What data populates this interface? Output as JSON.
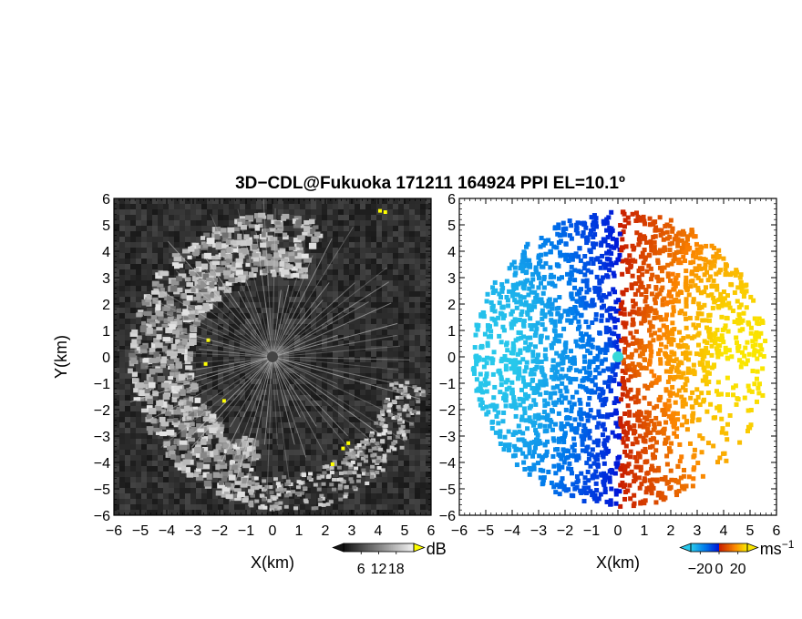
{
  "chart_data": [
    {
      "type": "heatmap",
      "panel": "reflectivity",
      "title": "3D−CDL@Fukuoka 171211 164924 PPI EL=10.1º",
      "xlabel": "X(km)",
      "ylabel": "Y(km)",
      "xlim": [
        -6,
        6
      ],
      "ylim": [
        -6,
        6
      ],
      "x_ticks": [
        "−6",
        "−5",
        "−4",
        "−3",
        "−2",
        "−1",
        "0",
        "1",
        "2",
        "3",
        "4",
        "5",
        "6"
      ],
      "y_ticks": [
        "−6",
        "−5",
        "−4",
        "−3",
        "−2",
        "−1",
        "0",
        "1",
        "2",
        "3",
        "4",
        "5",
        "6"
      ],
      "colorbar": {
        "label": "dB",
        "ticks": [
          "6",
          "12",
          "18"
        ],
        "range": [
          0,
          24
        ],
        "colormap": "grayscale",
        "over_color": "#ffff00"
      },
      "background_color": "#262626"
    },
    {
      "type": "heatmap",
      "panel": "radial-velocity",
      "xlabel": "X(km)",
      "xlim": [
        -6,
        6
      ],
      "ylim": [
        -6,
        6
      ],
      "x_ticks": [
        "−6",
        "−5",
        "−4",
        "−3",
        "−2",
        "−1",
        "0",
        "1",
        "2",
        "3",
        "4",
        "5",
        "6"
      ],
      "y_ticks": [
        "−6",
        "−5",
        "−4",
        "−3",
        "−2",
        "−1",
        "0",
        "1",
        "2",
        "3",
        "4",
        "5",
        "6"
      ],
      "colorbar": {
        "label": "ms",
        "label_exponent": "−1",
        "ticks": [
          "−20",
          "0",
          "20"
        ],
        "range": [
          -30,
          30
        ],
        "colormap": "cyan-blue-red-yellow"
      },
      "background_color": "#ffffff"
    }
  ]
}
